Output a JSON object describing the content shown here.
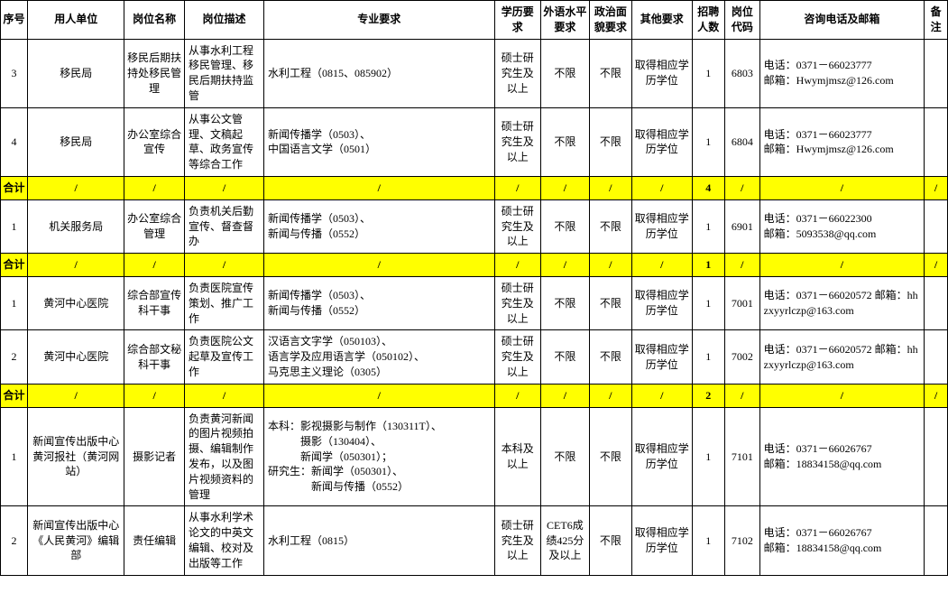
{
  "headers": {
    "seq": "序号",
    "employer": "用人单位",
    "position": "岗位名称",
    "desc": "岗位描述",
    "major": "专业要求",
    "edu": "学历要求",
    "lang": "外语水平要求",
    "pol": "政治面貌要求",
    "other": "其他要求",
    "count": "招聘人数",
    "code": "岗位代码",
    "contact": "咨询电话及邮箱",
    "remark": "备注"
  },
  "rows": [
    {
      "type": "data",
      "seq": "3",
      "employer": "移民局",
      "position": "移民后期扶持处移民管理",
      "desc": "从事水利工程移民管理、移民后期扶持监管",
      "major": "水利工程（0815、085902）",
      "edu": "硕士研究生及以上",
      "lang": "不限",
      "pol": "不限",
      "other": "取得相应学历学位",
      "count": "1",
      "code": "6803",
      "contact": "电话：0371－66023777\n邮箱：Hwymjmsz@126.com",
      "remark": ""
    },
    {
      "type": "data",
      "seq": "4",
      "employer": "移民局",
      "position": "办公室综合宣传",
      "desc": "从事公文管理、文稿起草、政务宣传等综合工作",
      "major": "新闻传播学（0503）、\n中国语言文学（0501）",
      "edu": "硕士研究生及以上",
      "lang": "不限",
      "pol": "不限",
      "other": "取得相应学历学位",
      "count": "1",
      "code": "6804",
      "contact": "电话：0371－66023777\n邮箱：Hwymjmsz@126.com",
      "remark": ""
    },
    {
      "type": "subtotal",
      "seq": "合计",
      "count": "4"
    },
    {
      "type": "data",
      "seq": "1",
      "employer": "机关服务局",
      "position": "办公室综合管理",
      "desc": "负责机关后勤宣传、督查督办",
      "major": "新闻传播学（0503）、\n新闻与传播（0552）",
      "edu": "硕士研究生及以上",
      "lang": "不限",
      "pol": "不限",
      "other": "取得相应学历学位",
      "count": "1",
      "code": "6901",
      "contact": "电话：0371－66022300\n邮箱：5093538@qq.com",
      "remark": ""
    },
    {
      "type": "subtotal",
      "seq": "合计",
      "count": "1"
    },
    {
      "type": "data",
      "seq": "1",
      "employer": "黄河中心医院",
      "position": "综合部宣传科干事",
      "desc": "负责医院宣传策划、推广工作",
      "major": "新闻传播学（0503）、\n新闻与传播（0552）",
      "edu": "硕士研究生及以上",
      "lang": "不限",
      "pol": "不限",
      "other": "取得相应学历学位",
      "count": "1",
      "code": "7001",
      "contact": "电话：0371－66020572 邮箱：hhzxyyrlczp@163.com",
      "remark": ""
    },
    {
      "type": "data",
      "seq": "2",
      "employer": "黄河中心医院",
      "position": "综合部文秘科干事",
      "desc": "负责医院公文起草及宣传工作",
      "major": "汉语言文字学（050103）、\n语言学及应用语言学（050102）、\n马克思主义理论（0305）",
      "edu": "硕士研究生及以上",
      "lang": "不限",
      "pol": "不限",
      "other": "取得相应学历学位",
      "count": "1",
      "code": "7002",
      "contact": "电话：0371－66020572 邮箱：hhzxyyrlczp@163.com",
      "remark": ""
    },
    {
      "type": "subtotal",
      "seq": "合计",
      "count": "2"
    },
    {
      "type": "data",
      "seq": "1",
      "employer": "新闻宣传出版中心黄河报社（黄河网站）",
      "position": "摄影记者",
      "desc": "负责黄河新闻的图片视频拍摄、编辑制作发布，以及图片视频资料的管理",
      "major": "本科：影视摄影与制作（130311T）、\n　　　摄影（130404）、\n　　　新闻学（050301）；\n研究生：新闻学（050301）、\n　　　　新闻与传播（0552）",
      "edu": "本科及以上",
      "lang": "不限",
      "pol": "不限",
      "other": "取得相应学历学位",
      "count": "1",
      "code": "7101",
      "contact": "电话：0371－66026767\n邮箱：18834158@qq.com",
      "remark": ""
    },
    {
      "type": "data",
      "seq": "2",
      "employer": "新闻宣传出版中心《人民黄河》编辑部",
      "position": "责任编辑",
      "desc": "从事水利学术论文的中英文编辑、校对及出版等工作",
      "major": "水利工程（0815）",
      "edu": "硕士研究生及以上",
      "lang": "CET6成绩425分及以上",
      "pol": "不限",
      "other": "取得相应学历学位",
      "count": "1",
      "code": "7102",
      "contact": "电话：0371－66026767\n邮箱：18834158@qq.com",
      "remark": ""
    }
  ],
  "slash": "/",
  "style": {
    "highlight_bg": "#ffff00",
    "border_color": "#000000",
    "font_size": 12,
    "background": "#ffffff",
    "text_color": "#000000"
  }
}
